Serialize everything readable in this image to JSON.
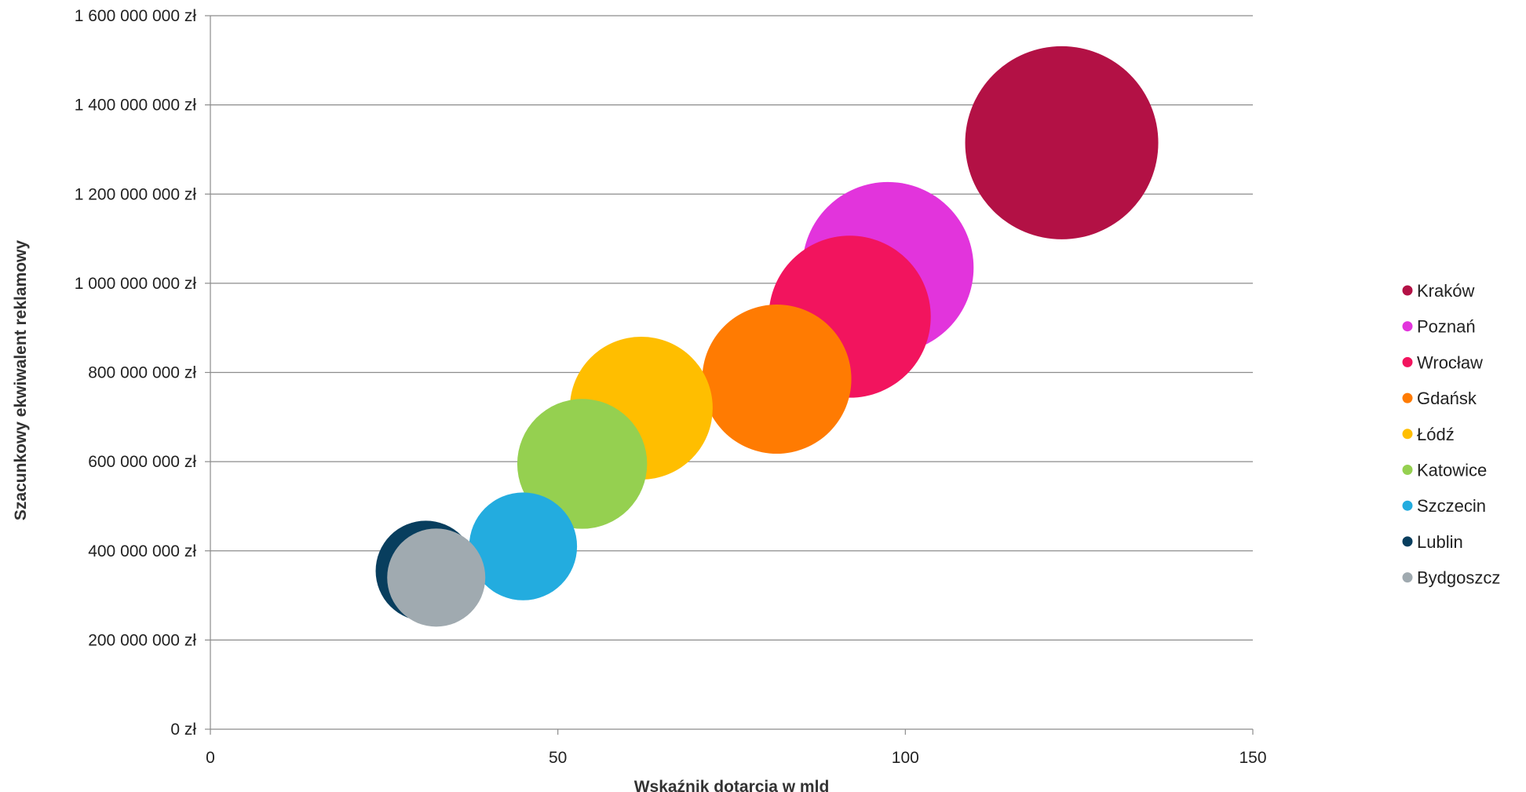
{
  "chart_data": {
    "type": "bubble",
    "xlabel": "Wskaźnik dotarcia w mld",
    "ylabel": "Szacunkowy ekwiwalent reklamowy",
    "xlim": [
      0,
      150
    ],
    "ylim": [
      0,
      1600000000
    ],
    "x_ticks": [
      0,
      50,
      100,
      150
    ],
    "x_tick_labels": [
      "0",
      "50",
      "100",
      "150"
    ],
    "y_ticks": [
      0,
      200000000,
      400000000,
      600000000,
      800000000,
      1000000000,
      1200000000,
      1400000000,
      1600000000
    ],
    "y_tick_labels": [
      "0 zł",
      "200 000 000 zł",
      "400 000 000 zł",
      "600 000 000 zł",
      "800 000 000 zł",
      "1 000 000 000 zł",
      "1 200 000 000 zł",
      "1 400 000 000 zł",
      "1 600 000 000 zł"
    ],
    "grid": "horizontal",
    "legend_position": "right",
    "series": [
      {
        "name": "Kraków",
        "x": 122.5,
        "y": 1315000000,
        "size": 1315000000,
        "color": "#B31145"
      },
      {
        "name": "Poznań",
        "x": 97.5,
        "y": 1035000000,
        "size": 1035000000,
        "color": "#E234DC"
      },
      {
        "name": "Wrocław",
        "x": 92,
        "y": 925000000,
        "size": 925000000,
        "color": "#F2145E"
      },
      {
        "name": "Gdańsk",
        "x": 81.5,
        "y": 785000000,
        "size": 785000000,
        "color": "#FF7B02"
      },
      {
        "name": "Łódź",
        "x": 62,
        "y": 720000000,
        "size": 720000000,
        "color": "#FFBE00"
      },
      {
        "name": "Katowice",
        "x": 53.5,
        "y": 595000000,
        "size": 595000000,
        "color": "#95D050"
      },
      {
        "name": "Szczecin",
        "x": 45,
        "y": 410000000,
        "size": 410000000,
        "color": "#23ACDF"
      },
      {
        "name": "Lublin",
        "x": 31,
        "y": 355000000,
        "size": 355000000,
        "color": "#083E5E"
      },
      {
        "name": "Bydgoszcz",
        "x": 32.5,
        "y": 340000000,
        "size": 340000000,
        "color": "#A0AAB0"
      }
    ]
  }
}
